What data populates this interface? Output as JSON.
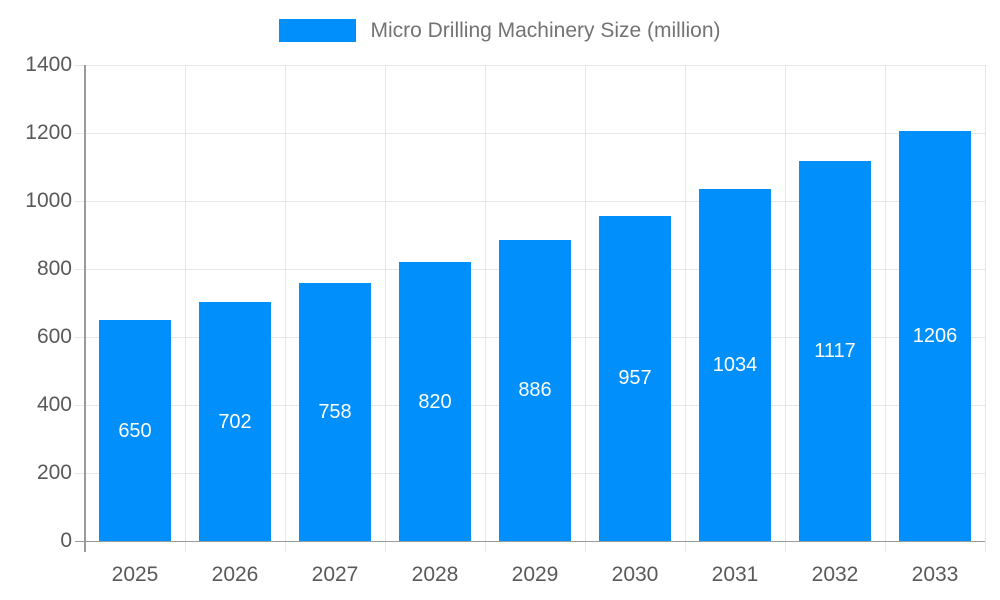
{
  "chart_data": {
    "type": "bar",
    "title": "Micro Drilling Machinery Size (million)",
    "categories": [
      "2025",
      "2026",
      "2027",
      "2028",
      "2029",
      "2030",
      "2031",
      "2032",
      "2033"
    ],
    "values": [
      650,
      702,
      758,
      820,
      886,
      957,
      1034,
      1117,
      1206
    ],
    "xlabel": "",
    "ylabel": "",
    "ylim": [
      0,
      1400
    ],
    "ytick_step": 200,
    "ytick_labels": [
      "0",
      "200",
      "400",
      "600",
      "800",
      "1000",
      "1200",
      "1400"
    ],
    "grid": true,
    "legend_position": "top",
    "value_labels_inside_bars": true,
    "colors": {
      "bar": "#008FFB",
      "value_label": "#ffffff",
      "grid_line": "#e6e6e6",
      "axis_line": "#9a9a9a",
      "tick_label": "#595959",
      "legend_label": "#737373",
      "background": "#ffffff"
    }
  }
}
